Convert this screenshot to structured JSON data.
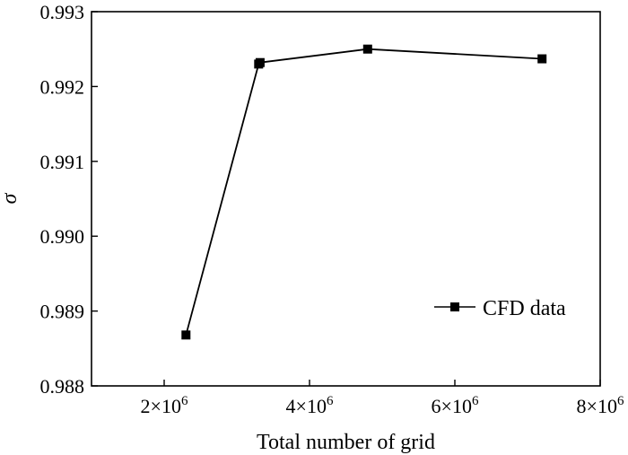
{
  "chart_data": {
    "type": "line",
    "title": "",
    "xlabel": "Total number of grid",
    "ylabel": "σ",
    "x_ticks": [
      {
        "value": 2000000,
        "base": "2×10",
        "exp": "6"
      },
      {
        "value": 4000000,
        "base": "4×10",
        "exp": "6"
      },
      {
        "value": 6000000,
        "base": "6×10",
        "exp": "6"
      },
      {
        "value": 8000000,
        "base": "8×10",
        "exp": "6"
      }
    ],
    "y_ticks": [
      "0.988",
      "0.989",
      "0.990",
      "0.991",
      "0.992",
      "0.993"
    ],
    "xlim": [
      1000000,
      8000000
    ],
    "ylim": [
      0.988,
      0.993
    ],
    "grid": false,
    "legend_position": "bottom-right",
    "series": [
      {
        "name": "CFD data",
        "color": "#000000",
        "marker": "square",
        "x": [
          2300000,
          3300000,
          3320000,
          4800000,
          7200000
        ],
        "y": [
          0.98868,
          0.9923,
          0.99232,
          0.9925,
          0.99237
        ]
      }
    ]
  }
}
